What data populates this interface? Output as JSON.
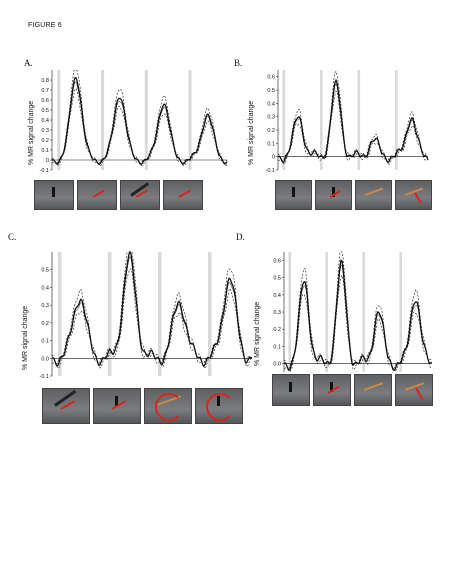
{
  "figure_title": "FIGURE 6",
  "ylabel": "% MR signal change",
  "chart_data": [
    {
      "label": "A.",
      "type": "line",
      "ylim": [
        -0.1,
        0.9
      ],
      "yticks": [
        "-0.1",
        "0",
        "0.1",
        "0.2",
        "0.3",
        "0.4",
        "0.5",
        "0.6",
        "0.7",
        "0.8"
      ],
      "shaded_blocks": 4,
      "peaks": [
        0.84,
        0.66,
        0.58,
        0.46
      ],
      "thumbnails": [
        "still-figure",
        "still-arm",
        "tool-motion",
        "still-arm"
      ]
    },
    {
      "label": "B.",
      "type": "line",
      "ylim": [
        -0.1,
        0.65
      ],
      "yticks": [
        "-0.1",
        "0",
        "0.1",
        "0.2",
        "0.3",
        "0.4",
        "0.5",
        "0.6"
      ],
      "shaded_blocks": 4,
      "peaks": [
        0.3,
        0.53,
        0.12,
        0.3
      ],
      "thumbnails": [
        "still-figure",
        "figure-arrows",
        "tool-diag",
        "tool-arrow"
      ]
    },
    {
      "label": "C.",
      "type": "line",
      "ylim": [
        -0.1,
        0.6
      ],
      "yticks": [
        "-0.1",
        "0.0",
        "0.1",
        "0.2",
        "0.3",
        "0.4",
        "0.5"
      ],
      "shaded_blocks": 4,
      "peaks": [
        0.35,
        0.56,
        0.32,
        0.45
      ],
      "thumbnails": [
        "tool-motion",
        "figure-arrows",
        "ring-tool",
        "ring-figure"
      ]
    },
    {
      "label": "D.",
      "type": "line",
      "ylim": [
        -0.05,
        0.65
      ],
      "yticks": [
        "0.0",
        "0.1",
        "0.2",
        "0.3",
        "0.4",
        "0.5",
        "0.6"
      ],
      "shaded_blocks": 4,
      "peaks": [
        0.48,
        0.56,
        0.3,
        0.4
      ],
      "thumbnails": [
        "still-figure",
        "figure-arrows",
        "tool-diag",
        "tool-arrow"
      ]
    }
  ]
}
